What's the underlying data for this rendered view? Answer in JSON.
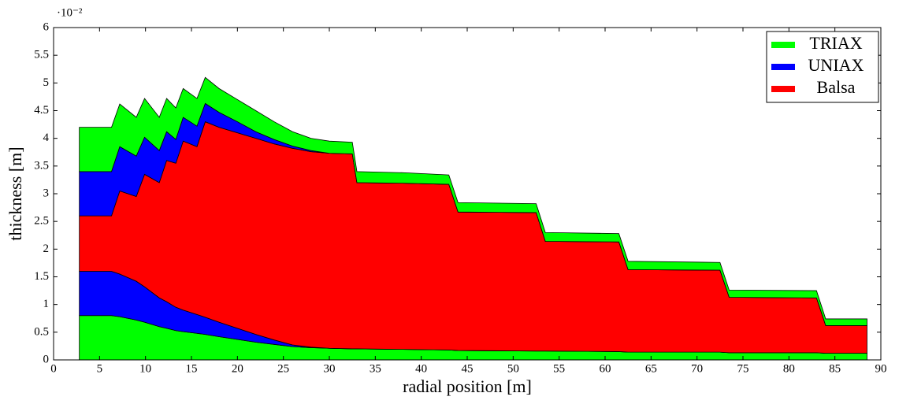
{
  "chart_data": {
    "type": "stacked_area",
    "x_label": "radial position [m]",
    "y_label": "thickness [m]",
    "y_multiplier": "·10⁻²",
    "x": [
      2.8,
      6.3,
      7.2,
      9.0,
      9.9,
      11.5,
      12.3,
      13.3,
      14.1,
      15.6,
      16.5,
      18,
      20,
      22,
      24,
      26,
      28,
      30,
      32.5,
      33,
      38,
      43,
      44,
      52.5,
      53.5,
      61.5,
      62.5,
      72.5,
      73.5,
      83,
      84,
      88.5
    ],
    "series": [
      {
        "name": "TRIAX",
        "color": "#00ff00",
        "values": [
          0.8,
          0.8,
          0.78,
          0.72,
          0.68,
          0.6,
          0.57,
          0.53,
          0.51,
          0.48,
          0.46,
          0.42,
          0.37,
          0.32,
          0.28,
          0.24,
          0.22,
          0.21,
          0.2,
          0.2,
          0.19,
          0.18,
          0.17,
          0.16,
          0.16,
          0.15,
          0.14,
          0.14,
          0.13,
          0.13,
          0.12,
          0.12
        ]
      },
      {
        "name": "UNIAX",
        "color": "#0000ff",
        "values": [
          0.8,
          0.8,
          0.77,
          0.7,
          0.64,
          0.52,
          0.48,
          0.42,
          0.39,
          0.34,
          0.31,
          0.26,
          0.2,
          0.14,
          0.08,
          0.03,
          0.01,
          0,
          0,
          0,
          0,
          0,
          0,
          0,
          0,
          0,
          0,
          0,
          0,
          0,
          0,
          0
        ]
      },
      {
        "name": "Balsa",
        "color": "#ff0000",
        "values": [
          1.0,
          1.0,
          1.5,
          1.53,
          2.03,
          2.08,
          2.55,
          2.6,
          3.05,
          3.03,
          3.53,
          3.52,
          3.53,
          3.54,
          3.54,
          3.55,
          3.53,
          3.52,
          3.52,
          3.0,
          3.0,
          2.99,
          2.5,
          2.5,
          1.98,
          1.98,
          1.49,
          1.48,
          1.0,
          0.99,
          0.5,
          0.5
        ]
      },
      {
        "name": "UNIAX",
        "color": "#0000ff",
        "values": [
          0.8,
          0.8,
          0.8,
          0.73,
          0.67,
          0.58,
          0.52,
          0.43,
          0.43,
          0.37,
          0.33,
          0.27,
          0.2,
          0.12,
          0.08,
          0.04,
          0.02,
          0,
          0,
          0,
          0,
          0,
          0,
          0,
          0,
          0,
          0,
          0,
          0,
          0,
          0,
          0
        ]
      },
      {
        "name": "TRIAX",
        "color": "#00ff00",
        "values": [
          0.8,
          0.8,
          0.77,
          0.7,
          0.7,
          0.6,
          0.6,
          0.57,
          0.52,
          0.5,
          0.47,
          0.43,
          0.4,
          0.38,
          0.32,
          0.26,
          0.22,
          0.22,
          0.21,
          0.2,
          0.19,
          0.17,
          0.17,
          0.16,
          0.16,
          0.15,
          0.15,
          0.14,
          0.13,
          0.13,
          0.12,
          0.12
        ]
      }
    ],
    "xlim": [
      0,
      90
    ],
    "xticks": [
      0,
      5,
      10,
      15,
      20,
      25,
      30,
      35,
      40,
      45,
      50,
      55,
      60,
      65,
      70,
      75,
      80,
      85,
      90
    ],
    "ylim": [
      0,
      6
    ],
    "yticks": [
      0,
      0.5,
      1,
      1.5,
      2,
      2.5,
      3,
      3.5,
      4,
      4.5,
      5,
      5.5,
      6
    ],
    "legend": "upper right"
  }
}
